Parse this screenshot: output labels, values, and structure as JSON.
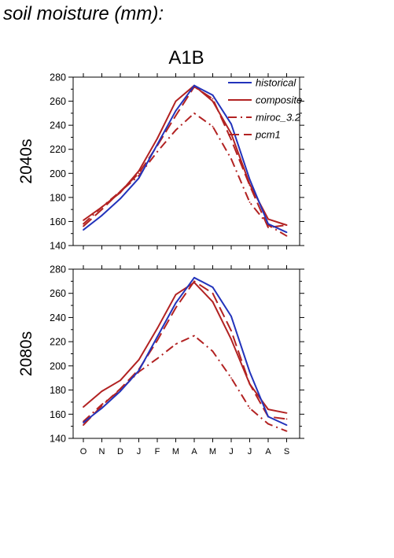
{
  "header": {
    "title": "soil moisture (mm):"
  },
  "colors": {
    "historical": "#2233bb",
    "composite": "#b22222",
    "miroc": "#b22222",
    "pcm1": "#b22222"
  },
  "chart_data": [
    {
      "type": "line",
      "title": "A1B",
      "ylabel": "2040s",
      "ylim": [
        140,
        280
      ],
      "yticks": [
        140,
        160,
        180,
        200,
        220,
        240,
        260,
        280
      ],
      "categories": [
        "O",
        "N",
        "D",
        "J",
        "F",
        "M",
        "A",
        "M",
        "J",
        "J",
        "A",
        "S"
      ],
      "legend": {
        "placement": "top-right"
      },
      "series": [
        {
          "name": "historical",
          "style": "solid",
          "color": "#2233bb",
          "values": [
            153,
            165,
            179,
            196,
            224,
            252,
            273,
            265,
            241,
            195,
            158,
            151
          ]
        },
        {
          "name": "composite",
          "style": "solid",
          "color": "#b22222",
          "values": [
            161,
            172,
            184,
            202,
            229,
            260,
            273,
            260,
            233,
            191,
            162,
            157
          ]
        },
        {
          "name": "miroc_3.2",
          "style": "dashdot",
          "color": "#b22222",
          "values": [
            158,
            172,
            185,
            198,
            218,
            236,
            250,
            239,
            212,
            176,
            157,
            148
          ]
        },
        {
          "name": "pcm1",
          "style": "dashed",
          "color": "#b22222",
          "values": [
            156,
            170,
            185,
            200,
            223,
            248,
            272,
            262,
            228,
            190,
            155,
            157
          ]
        }
      ]
    },
    {
      "type": "line",
      "ylabel": "2080s",
      "ylim": [
        140,
        280
      ],
      "yticks": [
        140,
        160,
        180,
        200,
        220,
        240,
        260,
        280
      ],
      "categories": [
        "O",
        "N",
        "D",
        "J",
        "F",
        "M",
        "A",
        "M",
        "J",
        "J",
        "A",
        "S"
      ],
      "series": [
        {
          "name": "historical",
          "style": "solid",
          "color": "#2233bb",
          "values": [
            153,
            165,
            179,
            196,
            224,
            252,
            273,
            265,
            241,
            195,
            158,
            151
          ]
        },
        {
          "name": "composite",
          "style": "solid",
          "color": "#b22222",
          "values": [
            166,
            179,
            188,
            205,
            231,
            259,
            269,
            253,
            222,
            185,
            164,
            161
          ]
        },
        {
          "name": "miroc_3.2",
          "style": "dashdot",
          "color": "#b22222",
          "values": [
            154,
            168,
            180,
            195,
            206,
            218,
            225,
            212,
            190,
            165,
            152,
            146
          ]
        },
        {
          "name": "pcm1",
          "style": "dashed",
          "color": "#b22222",
          "values": [
            151,
            167,
            181,
            197,
            221,
            248,
            270,
            260,
            229,
            185,
            158,
            156
          ]
        }
      ]
    }
  ]
}
